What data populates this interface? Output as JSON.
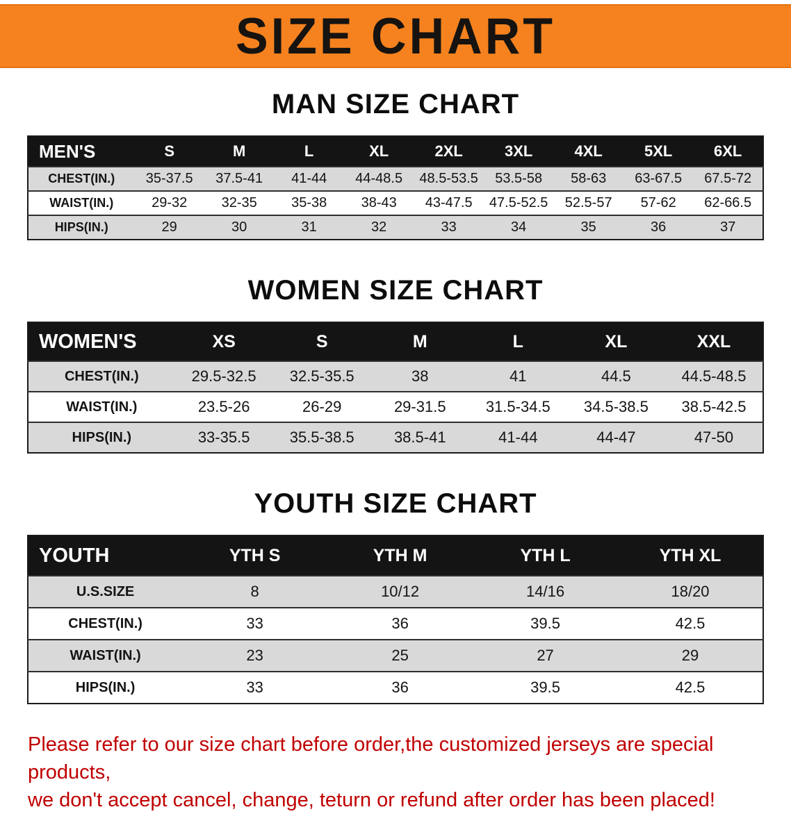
{
  "banner": {
    "title": "SIZE CHART",
    "bg_color": "#f5821f"
  },
  "colors": {
    "header_bg": "#141414",
    "shaded_row": "#d9d9d9"
  },
  "sections": [
    {
      "id": "men",
      "heading": "MAN SIZE CHART",
      "table": {
        "header": [
          "MEN'S",
          "S",
          "M",
          "L",
          "XL",
          "2XL",
          "3XL",
          "4XL",
          "5XL",
          "6XL"
        ],
        "rows": [
          [
            "CHEST(IN.)",
            "35-37.5",
            "37.5-41",
            "41-44",
            "44-48.5",
            "48.5-53.5",
            "53.5-58",
            "58-63",
            "63-67.5",
            "67.5-72"
          ],
          [
            "WAIST(IN.)",
            "29-32",
            "32-35",
            "35-38",
            "38-43",
            "43-47.5",
            "47.5-52.5",
            "52.5-57",
            "57-62",
            "62-66.5"
          ],
          [
            "HIPS(IN.)",
            "29",
            "30",
            "31",
            "32",
            "33",
            "34",
            "35",
            "36",
            "37"
          ]
        ]
      }
    },
    {
      "id": "women",
      "heading": "WOMEN SIZE CHART",
      "table": {
        "header": [
          "WOMEN'S",
          "XS",
          "S",
          "M",
          "L",
          "XL",
          "XXL"
        ],
        "rows": [
          [
            "CHEST(IN.)",
            "29.5-32.5",
            "32.5-35.5",
            "38",
            "41",
            "44.5",
            "44.5-48.5"
          ],
          [
            "WAIST(IN.)",
            "23.5-26",
            "26-29",
            "29-31.5",
            "31.5-34.5",
            "34.5-38.5",
            "38.5-42.5"
          ],
          [
            "HIPS(IN.)",
            "33-35.5",
            "35.5-38.5",
            "38.5-41",
            "41-44",
            "44-47",
            "47-50"
          ]
        ]
      }
    },
    {
      "id": "youth",
      "heading": "YOUTH SIZE CHART",
      "table": {
        "header": [
          "YOUTH",
          "YTH S",
          "YTH M",
          "YTH L",
          "YTH XL"
        ],
        "rows": [
          [
            "U.S.SIZE",
            "8",
            "10/12",
            "14/16",
            "18/20"
          ],
          [
            "CHEST(IN.)",
            "33",
            "36",
            "39.5",
            "42.5"
          ],
          [
            "WAIST(IN.)",
            "23",
            "25",
            "27",
            "29"
          ],
          [
            "HIPS(IN.)",
            "33",
            "36",
            "39.5",
            "42.5"
          ]
        ]
      }
    }
  ],
  "footer": {
    "line1": "Please refer to our size chart before order,the customized jerseys are special products,",
    "line2": "we don't accept cancel, change, teturn or refund after order has been placed!",
    "text_color": "#c00000"
  }
}
